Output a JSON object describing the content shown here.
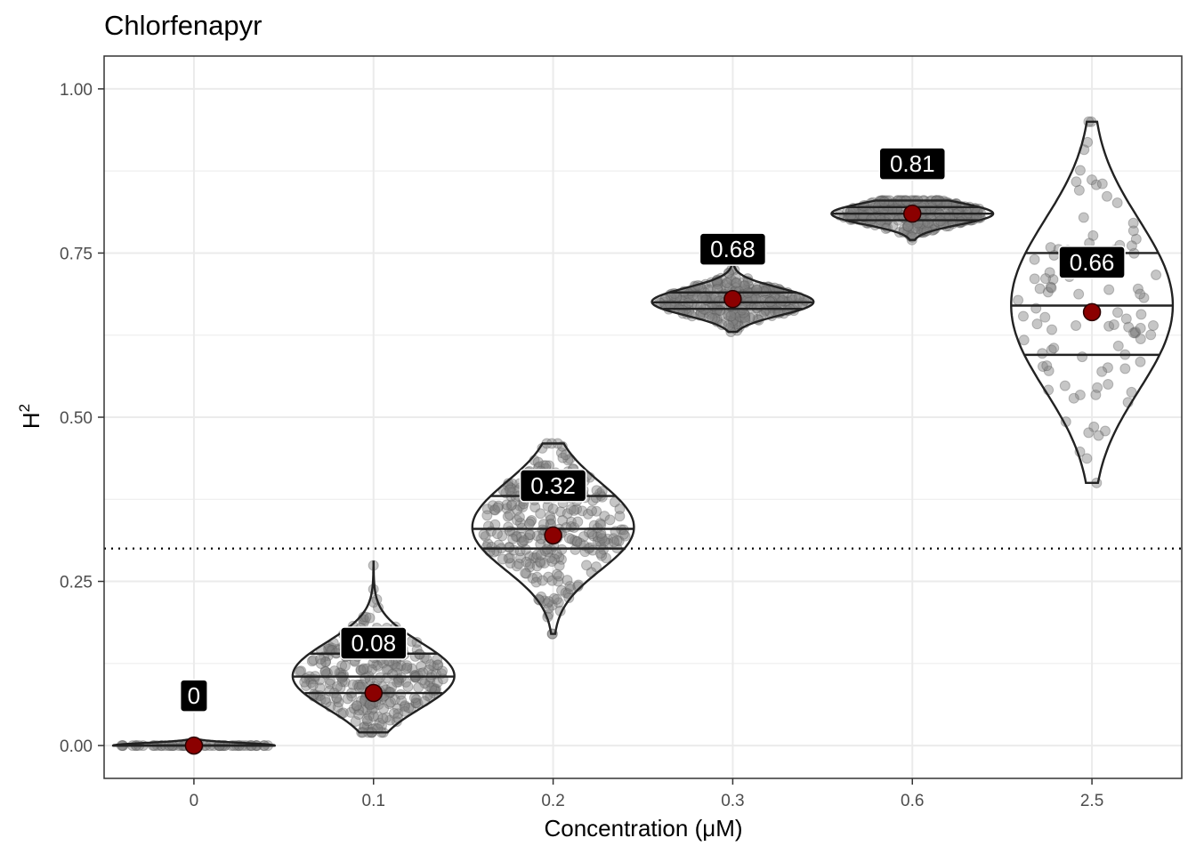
{
  "chart_data": {
    "type": "violin",
    "title": "Chlorfenapyr",
    "xlabel": "Concentration (μM)",
    "ylabel": "H",
    "ylabel_superscript": "2",
    "categories": [
      "0",
      "0.1",
      "0.2",
      "0.3",
      "0.6",
      "2.5"
    ],
    "ylim": [
      -0.05,
      1.05
    ],
    "yticks": [
      0.0,
      0.25,
      0.5,
      0.75,
      1.0
    ],
    "ytick_labels": [
      "0.00",
      "0.25",
      "0.50",
      "0.75",
      "1.00"
    ],
    "reference_line": 0.3,
    "grid": true,
    "groups": [
      {
        "category": "0",
        "mean": 0.0,
        "mean_label": "0",
        "min": 0.0,
        "max": 0.01,
        "q1": 0.0,
        "median": 0.0,
        "q3": 0.0,
        "n_points": 60
      },
      {
        "category": "0.1",
        "mean": 0.08,
        "mean_label": "0.08",
        "min": 0.02,
        "max": 0.28,
        "q1": 0.08,
        "median": 0.105,
        "q3": 0.14,
        "n_points": 300
      },
      {
        "category": "0.2",
        "mean": 0.32,
        "mean_label": "0.32",
        "min": 0.17,
        "max": 0.46,
        "q1": 0.3,
        "median": 0.33,
        "q3": 0.38,
        "n_points": 300
      },
      {
        "category": "0.3",
        "mean": 0.68,
        "mean_label": "0.68",
        "min": 0.63,
        "max": 0.75,
        "q1": 0.665,
        "median": 0.675,
        "q3": 0.69,
        "n_points": 300
      },
      {
        "category": "0.6",
        "mean": 0.81,
        "mean_label": "0.81",
        "min": 0.77,
        "max": 0.83,
        "q1": 0.8,
        "median": 0.81,
        "q3": 0.82,
        "n_points": 300
      },
      {
        "category": "2.5",
        "mean": 0.66,
        "mean_label": "0.66",
        "min": 0.4,
        "max": 0.95,
        "q1": 0.595,
        "median": 0.67,
        "q3": 0.75,
        "n_points": 100
      }
    ]
  },
  "colors": {
    "mean_point": "#8B0000",
    "points": "#808080",
    "violin_outline": "#222222",
    "label_bg": "#000000",
    "label_text": "#ffffff",
    "grid": "#ebebeb"
  }
}
